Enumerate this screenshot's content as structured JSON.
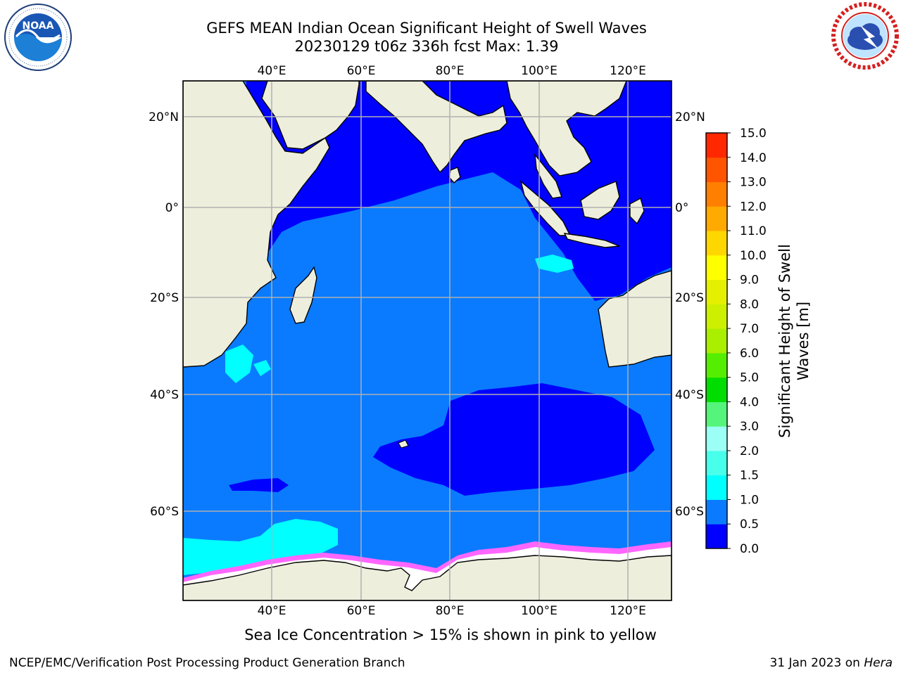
{
  "header": {
    "title_line1": "GEFS MEAN Indian Ocean Significant Height of Swell Waves",
    "title_line2": "20230129 t06z 336h fcst   Max: 1.39"
  },
  "logos": {
    "left": {
      "name": "noaa-logo",
      "text": "NOAA",
      "ring_text": "NATIONAL OCEANIC AND ATMOSPHERIC ADMINISTRATION · U.S. DEPARTMENT OF COMMERCE"
    },
    "right": {
      "name": "nws-logo",
      "ring_text": "NATIONAL WEATHER SERVICE"
    }
  },
  "map": {
    "lon_labels": [
      "40°E",
      "60°E",
      "80°E",
      "100°E",
      "120°E"
    ],
    "lat_labels": [
      "20°N",
      "0°",
      "20°S",
      "40°S",
      "60°S"
    ],
    "colors": {
      "land": "#eeeedd",
      "ocean_low": "#0000ff",
      "ocean_mid": "#0a7bff",
      "ocean_high": "#00ffff",
      "ice": "#ff66ff",
      "grid": "#b0b0b0"
    }
  },
  "colorbar": {
    "title_line1": "Significant Height of Swell",
    "title_line2": "Waves [m]",
    "ticks": [
      "0.0",
      "0.5",
      "1.0",
      "1.5",
      "2.0",
      "3.0",
      "4.0",
      "5.0",
      "6.0",
      "7.0",
      "8.0",
      "9.0",
      "10.0",
      "11.0",
      "12.0",
      "13.0",
      "14.0",
      "15.0"
    ],
    "colors": [
      "#0000ff",
      "#0a7bff",
      "#00ffff",
      "#47ffea",
      "#9bfff5",
      "#54f57a",
      "#00dd00",
      "#55ee00",
      "#aaee00",
      "#ccf000",
      "#e4f000",
      "#ffff00",
      "#ffd700",
      "#ffaa00",
      "#ff7f00",
      "#ff5500",
      "#ff2800",
      "#ff0000"
    ]
  },
  "footer": {
    "note": "Sea Ice Concentration > 15% is shown in pink to yellow",
    "credit_left": "NCEP/EMC/Verification Post Processing Product Generation Branch",
    "credit_right_prefix": "31 Jan 2023 on ",
    "credit_right_host": "Hera"
  }
}
